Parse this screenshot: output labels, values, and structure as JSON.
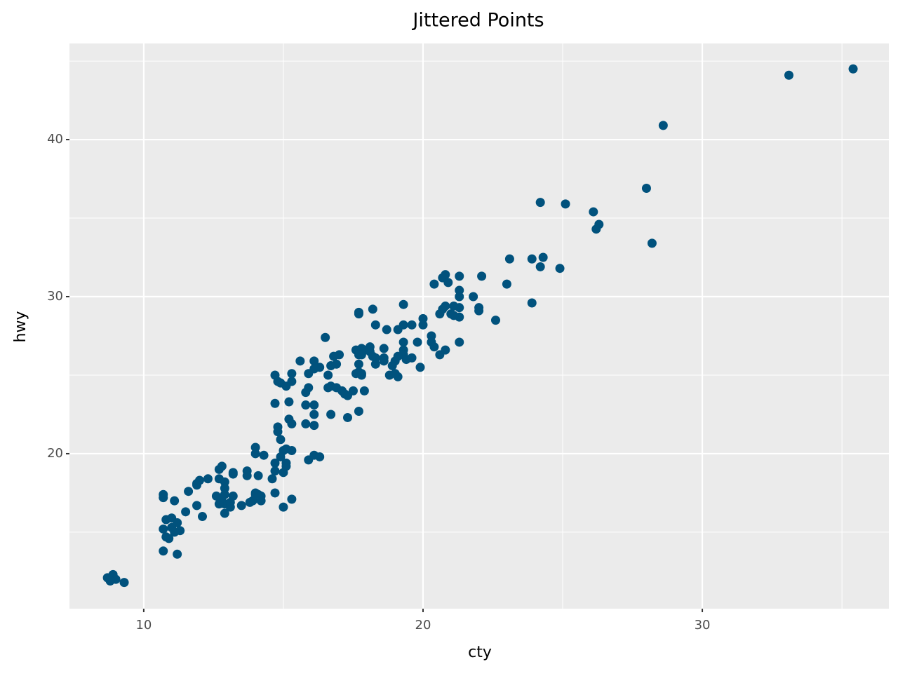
{
  "chart_data": {
    "type": "scatter",
    "title": "Jittered Points",
    "x_label": "cty",
    "y_label": "hwy",
    "x": [
      35.4,
      33.1,
      28.6,
      28.0,
      28.2,
      24.2,
      25.1,
      26.1,
      26.3,
      26.2,
      23.1,
      23.9,
      24.3,
      24.2,
      24.9,
      23.0,
      23.9,
      22.6,
      22.1,
      22.0,
      22.0,
      21.8,
      21.3,
      21.3,
      21.3,
      21.3,
      21.3,
      21.3,
      20.8,
      20.7,
      20.9,
      20.4,
      21.1,
      20.8,
      20.7,
      20.6,
      21.0,
      21.1,
      20.8,
      20.6,
      20.3,
      20.3,
      20.4,
      20.0,
      20.0,
      19.6,
      19.3,
      19.1,
      19.3,
      18.7,
      19.3,
      19.3,
      19.3,
      19.4,
      19.6,
      19.8,
      19.9,
      19.1,
      19.0,
      18.9,
      18.8,
      19.1,
      19.0,
      18.6,
      18.6,
      18.3,
      18.6,
      18.1,
      17.9,
      17.6,
      17.8,
      18.1,
      17.7,
      17.8,
      18.2,
      17.7,
      18.3,
      17.7,
      18.2,
      18.3,
      17.7,
      17.7,
      17.6,
      17.8,
      17.8,
      17.5,
      17.9,
      17.7,
      17.3,
      17.0,
      16.8,
      16.5,
      16.9,
      16.7,
      16.6,
      16.7,
      16.6,
      16.9,
      17.1,
      17.2,
      17.3,
      16.7,
      16.3,
      16.1,
      16.1,
      15.9,
      15.9,
      15.8,
      15.8,
      16.1,
      16.1,
      15.8,
      16.1,
      15.6,
      15.3,
      15.3,
      14.7,
      14.8,
      14.9,
      15.1,
      14.7,
      15.2,
      15.2,
      15.3,
      14.8,
      14.8,
      14.9,
      15.0,
      15.1,
      15.3,
      15.9,
      16.1,
      16.3,
      14.0,
      14.0,
      14.3,
      14.9,
      14.7,
      15.1,
      15.1,
      14.7,
      15.0,
      14.6,
      14.1,
      13.7,
      13.7,
      13.2,
      13.2,
      12.8,
      12.7,
      12.3,
      11.9,
      11.9,
      12.0,
      11.6,
      12.7,
      12.9,
      12.9,
      12.9,
      12.6,
      12.8,
      12.9,
      13.1,
      13.2,
      12.7,
      13.1,
      12.9,
      13.5,
      13.9,
      13.8,
      14.0,
      14.1,
      14.2,
      14.2,
      14.0,
      14.7,
      15.0,
      15.3,
      11.9,
      12.1,
      11.5,
      10.7,
      10.7,
      11.1,
      10.8,
      11.0,
      11.2,
      11.3,
      10.7,
      11.0,
      11.1,
      10.8,
      10.9,
      10.7,
      11.2,
      8.7,
      8.8,
      8.9,
      9.0,
      8.8,
      9.3
    ],
    "values": [
      44.5,
      44.1,
      40.9,
      36.9,
      33.4,
      36.0,
      35.9,
      35.4,
      34.6,
      34.3,
      32.4,
      32.4,
      32.5,
      31.9,
      31.8,
      30.8,
      29.6,
      28.5,
      31.3,
      29.3,
      29.1,
      30.0,
      31.3,
      30.4,
      30.0,
      29.3,
      28.7,
      27.1,
      31.4,
      31.2,
      30.9,
      30.8,
      29.4,
      29.4,
      29.2,
      28.9,
      28.9,
      28.8,
      26.6,
      26.3,
      27.5,
      27.1,
      26.8,
      28.6,
      28.2,
      28.2,
      28.2,
      27.9,
      29.5,
      27.9,
      27.1,
      26.6,
      26.3,
      26.0,
      26.1,
      27.1,
      25.5,
      26.2,
      25.9,
      25.6,
      25.0,
      24.9,
      25.1,
      26.7,
      26.1,
      26.1,
      25.9,
      26.8,
      26.6,
      26.6,
      26.7,
      26.5,
      26.3,
      26.3,
      26.2,
      25.7,
      25.7,
      25.2,
      29.2,
      28.2,
      29.0,
      28.9,
      25.1,
      25.1,
      25.0,
      24.0,
      24.0,
      22.7,
      22.3,
      26.3,
      26.2,
      27.4,
      25.7,
      25.6,
      25.0,
      24.3,
      24.2,
      24.2,
      24.0,
      23.8,
      23.7,
      22.5,
      25.5,
      25.9,
      25.4,
      25.1,
      24.2,
      23.9,
      23.1,
      23.1,
      22.5,
      21.9,
      21.8,
      25.9,
      25.1,
      24.6,
      25.0,
      24.6,
      24.5,
      24.3,
      23.2,
      23.3,
      22.2,
      21.9,
      21.7,
      21.4,
      20.9,
      20.2,
      20.3,
      20.2,
      19.6,
      19.9,
      19.8,
      20.4,
      20.0,
      19.9,
      19.8,
      19.4,
      19.4,
      19.2,
      18.9,
      18.8,
      18.4,
      18.6,
      18.9,
      18.6,
      18.8,
      18.7,
      19.2,
      19.0,
      18.4,
      18.1,
      18.0,
      18.3,
      17.6,
      18.4,
      18.2,
      17.8,
      17.4,
      17.3,
      17.2,
      16.8,
      16.9,
      17.3,
      16.8,
      16.6,
      16.2,
      16.7,
      17.0,
      16.9,
      17.5,
      17.4,
      17.3,
      17.0,
      17.4,
      17.5,
      16.6,
      17.1,
      16.7,
      16.0,
      16.3,
      17.4,
      17.2,
      17.0,
      15.8,
      15.9,
      15.6,
      15.1,
      15.2,
      15.3,
      15.0,
      14.7,
      14.6,
      13.8,
      13.6,
      12.1,
      11.9,
      12.3,
      12.0,
      11.9,
      11.8
    ],
    "color": "#01527d",
    "xlim": [
      7.34,
      36.68
    ],
    "ylim": [
      10.13,
      46.12
    ],
    "xticks": [
      10,
      20,
      30
    ],
    "yticks": [
      20,
      30,
      40
    ],
    "x_minor_grid": [
      15,
      25,
      35
    ],
    "y_minor_grid": [
      15,
      25,
      35,
      45
    ],
    "grid": true
  }
}
